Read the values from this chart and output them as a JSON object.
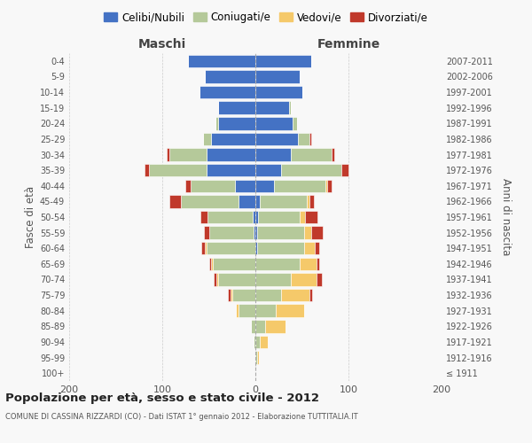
{
  "age_groups": [
    "100+",
    "95-99",
    "90-94",
    "85-89",
    "80-84",
    "75-79",
    "70-74",
    "65-69",
    "60-64",
    "55-59",
    "50-54",
    "45-49",
    "40-44",
    "35-39",
    "30-34",
    "25-29",
    "20-24",
    "15-19",
    "10-14",
    "5-9",
    "0-4"
  ],
  "birth_years": [
    "≤ 1911",
    "1912-1916",
    "1917-1921",
    "1922-1926",
    "1927-1931",
    "1932-1936",
    "1937-1941",
    "1942-1946",
    "1947-1951",
    "1952-1956",
    "1957-1961",
    "1962-1966",
    "1967-1971",
    "1972-1976",
    "1977-1981",
    "1982-1986",
    "1987-1991",
    "1992-1996",
    "1997-2001",
    "2002-2006",
    "2007-2011"
  ],
  "males_celibi": [
    0,
    0,
    0,
    0,
    0,
    0,
    0,
    0,
    0,
    2,
    3,
    18,
    22,
    52,
    52,
    48,
    40,
    40,
    60,
    54,
    72
  ],
  "males_coniugati": [
    0,
    0,
    2,
    5,
    18,
    25,
    40,
    46,
    52,
    48,
    48,
    62,
    48,
    62,
    40,
    8,
    3,
    0,
    0,
    0,
    0
  ],
  "males_vedovi": [
    0,
    0,
    0,
    0,
    3,
    2,
    2,
    2,
    2,
    0,
    0,
    0,
    0,
    0,
    0,
    0,
    0,
    0,
    0,
    0,
    0
  ],
  "males_divorziati": [
    0,
    0,
    0,
    0,
    0,
    3,
    3,
    2,
    4,
    5,
    8,
    12,
    5,
    5,
    3,
    0,
    0,
    0,
    0,
    0,
    0
  ],
  "females_nubili": [
    0,
    0,
    0,
    0,
    0,
    0,
    0,
    0,
    2,
    2,
    3,
    5,
    20,
    28,
    38,
    46,
    40,
    36,
    50,
    48,
    60
  ],
  "females_coniugate": [
    0,
    2,
    5,
    10,
    22,
    28,
    38,
    48,
    50,
    50,
    45,
    50,
    55,
    64,
    44,
    12,
    5,
    2,
    0,
    0,
    0
  ],
  "females_vedove": [
    0,
    2,
    8,
    22,
    30,
    30,
    28,
    18,
    12,
    8,
    5,
    3,
    2,
    0,
    0,
    0,
    0,
    0,
    0,
    0,
    0
  ],
  "females_divorziate": [
    0,
    0,
    0,
    0,
    0,
    3,
    5,
    3,
    5,
    12,
    14,
    5,
    5,
    8,
    3,
    2,
    0,
    0,
    0,
    0,
    0
  ],
  "color_celibi": "#4472c4",
  "color_coniugati": "#b5c99a",
  "color_vedovi": "#f5c96a",
  "color_divorziati": "#c0392b",
  "legend_labels": [
    "Celibi/Nubili",
    "Coniugati/e",
    "Vedovi/e",
    "Divorziati/e"
  ],
  "title": "Popolazione per età, sesso e stato civile - 2012",
  "subtitle": "COMUNE DI CASSINA RIZZARDI (CO) - Dati ISTAT 1° gennaio 2012 - Elaborazione TUTTITALIA.IT",
  "maschi_label": "Maschi",
  "femmine_label": "Femmine",
  "fasce_label": "Fasce di età",
  "anni_label": "Anni di nascita",
  "xlim": 200,
  "bg_color": "#f8f8f8"
}
